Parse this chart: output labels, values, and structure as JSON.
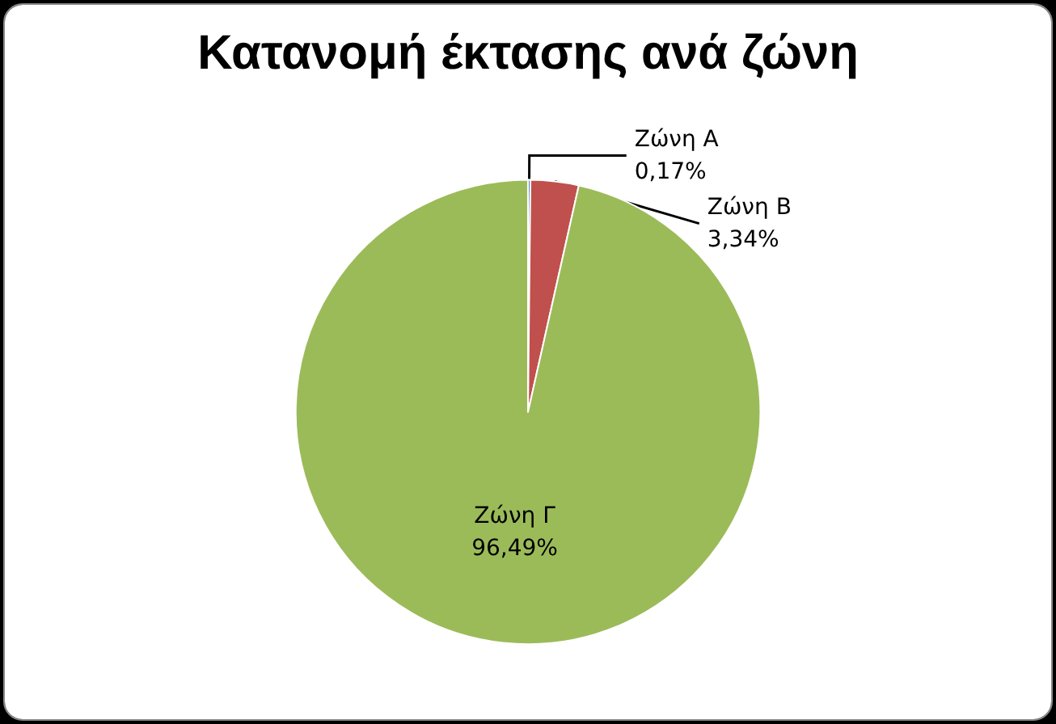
{
  "chart_data": {
    "type": "pie",
    "title": "Κατανομή έκτασης ανά ζώνη",
    "categories": [
      "Ζώνη Α",
      "Ζώνη Β",
      "Ζώνη Γ"
    ],
    "values": [
      0.17,
      3.34,
      96.49
    ],
    "colors": [
      "#4f81bd",
      "#c0504d",
      "#9bbb59"
    ],
    "value_labels": [
      "0,17%",
      "3,34%",
      "96,49%"
    ],
    "legend": false
  }
}
